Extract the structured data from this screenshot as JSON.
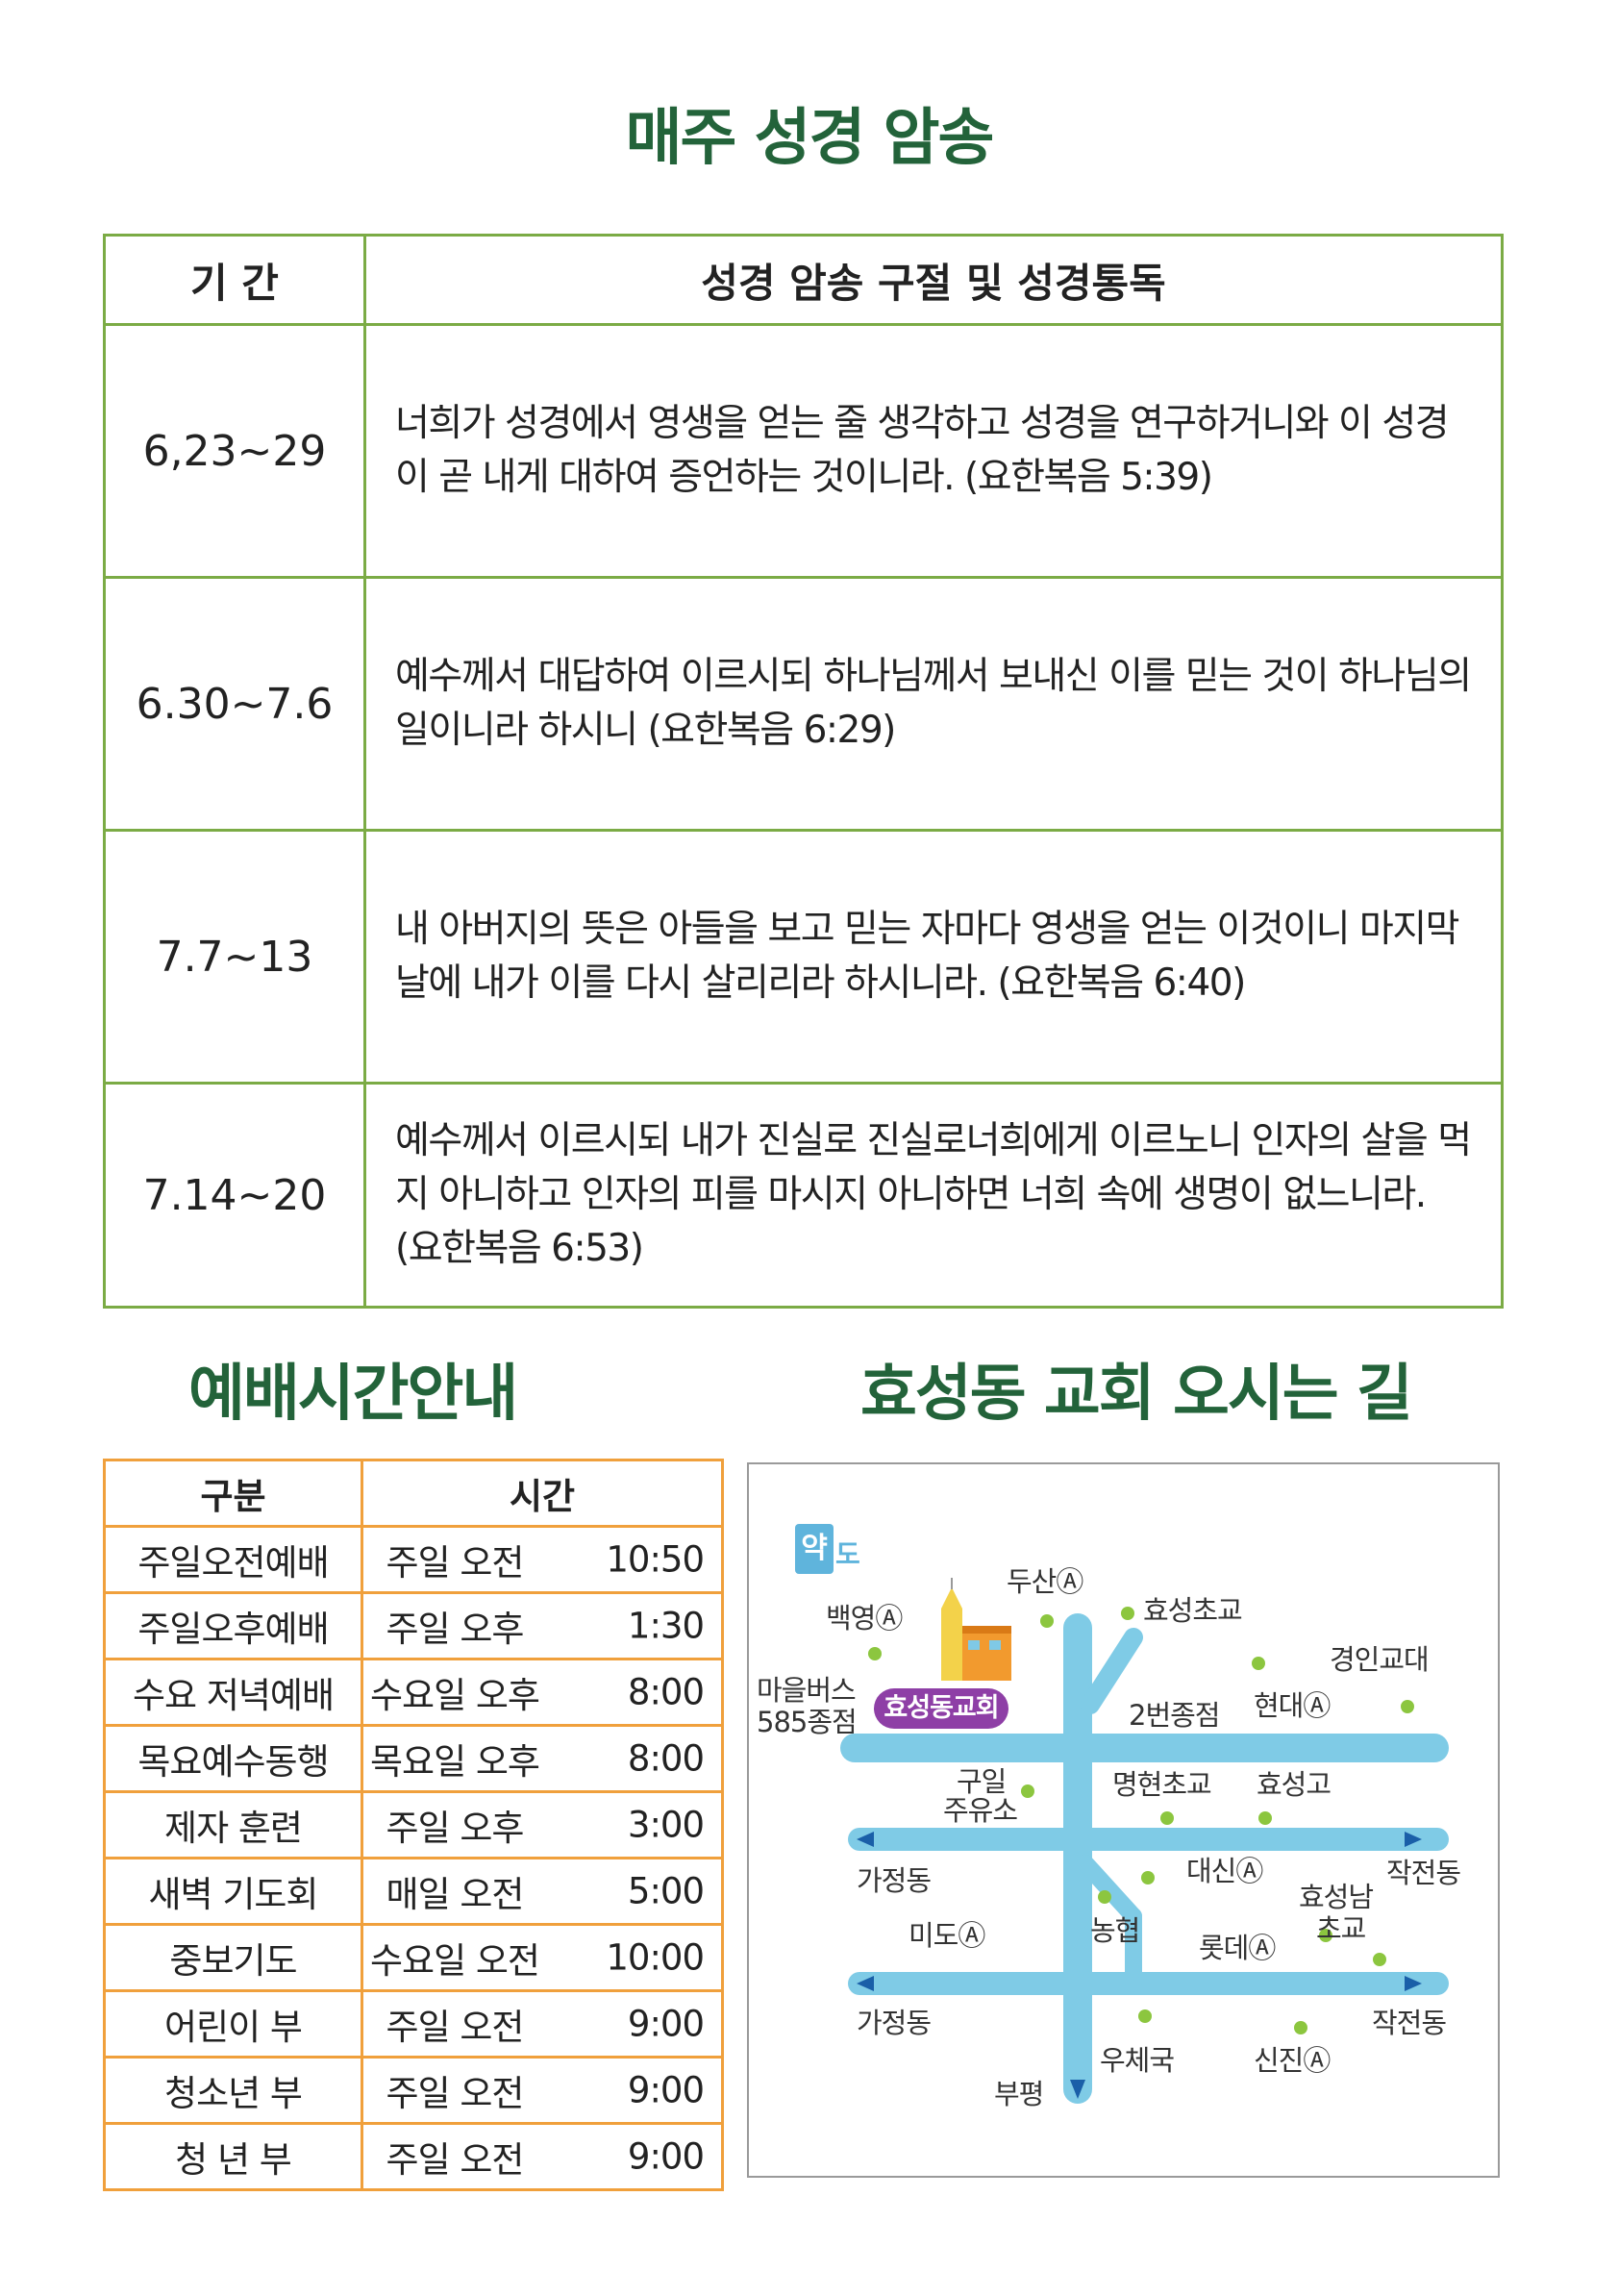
{
  "titles": {
    "memory": "매주 성경 암송",
    "worship": "예배시간안내",
    "directions": "효성동 교회 오시는 길"
  },
  "memory_table": {
    "headers": [
      "기 간",
      "성경 암송 구절  및  성경통독"
    ],
    "rows": [
      {
        "period": "6,23~29",
        "verse": "너희가 성경에서 영생을 얻는 줄 생각하고 성경을 연구하거니와 이 성경이 곧 내게 대하여 증언하는 것이니라. (요한복음 5:39)"
      },
      {
        "period": "6.30~7.6",
        "verse": "예수께서 대답하여 이르시되 하나님께서 보내신 이를 믿는 것이 하나님의 일이니라 하시니 (요한복음 6:29)"
      },
      {
        "period": "7.7~13",
        "verse": "내 아버지의 뜻은 아들을 보고 믿는 자마다 영생을 얻는 이것이니 마지막 날에 내가 이를 다시 살리리라 하시니라. (요한복음 6:40)"
      },
      {
        "period": "7.14~20",
        "verse": "예수께서 이르시되 내가 진실로 진실로너희에게 이르노니 인자의 살을 먹지 아니하고 인자의 피를 마시지 아니하면 너희 속에 생명이 없느니라. (요한복음 6:53)"
      }
    ]
  },
  "worship_table": {
    "headers": [
      "구분",
      "시간"
    ],
    "rows": [
      {
        "name": "주일오전예배",
        "day": "주일 오전",
        "time": "10:50"
      },
      {
        "name": "주일오후예배",
        "day": "주일 오후",
        "time": "1:30"
      },
      {
        "name": "수요 저녁예배",
        "day": "수요일 오후",
        "time": "8:00"
      },
      {
        "name": "목요예수동행",
        "day": "목요일 오후",
        "time": "8:00"
      },
      {
        "name": "제자 훈련",
        "day": "주일 오후",
        "time": "3:00"
      },
      {
        "name": "새벽 기도회",
        "day": "매일 오전",
        "time": "5:00"
      },
      {
        "name": "중보기도",
        "day": "수요일 오전",
        "time": "10:00"
      },
      {
        "name": "어린이 부",
        "day": "주일 오전",
        "time": "9:00"
      },
      {
        "name": "청소년 부",
        "day": "주일 오전",
        "time": "9:00"
      },
      {
        "name": "청 년 부",
        "day": "주일 오전",
        "time": "9:00"
      }
    ]
  },
  "map": {
    "logo_main": "약",
    "logo_sub": "도",
    "church": "효성동교회",
    "labels": {
      "baekyoung": "백영Ⓐ",
      "dusan": "두산Ⓐ",
      "hyosung_elem": "효성초교",
      "gyeongin": "경인교대",
      "hyundai": "현대Ⓐ",
      "bus": "마을버스",
      "bus_stop": "585종점",
      "stop2": "2번종점",
      "guil": "구일",
      "gas": "주유소",
      "myunghyun": "명현초교",
      "hyosung_high": "효성고",
      "gajung1": "가정동",
      "mido": "미도Ⓐ",
      "nonghyup": "농협",
      "daesin": "대신Ⓐ",
      "hyosungnam": "효성남",
      "elem": "초교",
      "jakjeon1": "작전동",
      "lotte": "롯데Ⓐ",
      "gajung2": "가정동",
      "jakjeon2": "작전동",
      "post": "우체국",
      "sinjin": "신진Ⓐ",
      "bupyeong": "부평"
    }
  }
}
